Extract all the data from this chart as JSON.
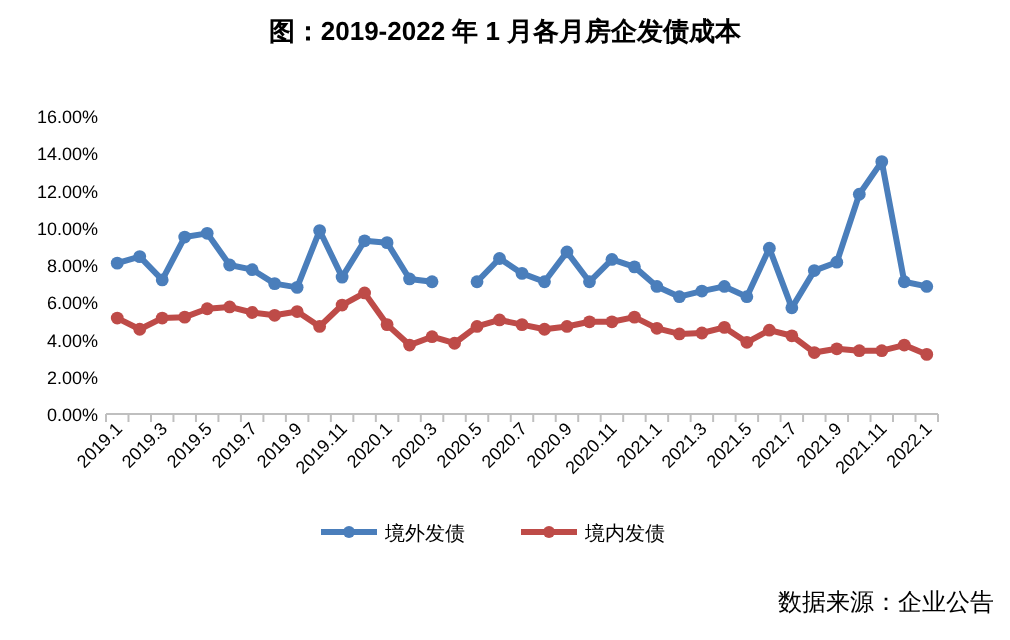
{
  "chart_data": {
    "type": "line",
    "title": "图：2019-2022 年 1 月各月房企发债成本",
    "categories": [
      "2019.1",
      null,
      "2019.3",
      null,
      "2019.5",
      null,
      "2019.7",
      null,
      "2019.9",
      null,
      "2019.11",
      null,
      "2020.1",
      null,
      "2020.3",
      null,
      "2020.5",
      null,
      "2020.7",
      null,
      "2020.9",
      null,
      "2020.11",
      null,
      "2021.1",
      null,
      "2021.3",
      null,
      "2021.5",
      null,
      "2021.7",
      null,
      "2021.9",
      null,
      "2021.11",
      null,
      "2022.1"
    ],
    "series": [
      {
        "name": "境外发债",
        "color": "#4a7ebb",
        "values": [
          8.1,
          8.45,
          7.2,
          9.5,
          9.7,
          8.0,
          7.75,
          7.0,
          6.8,
          9.85,
          7.35,
          9.3,
          9.2,
          7.25,
          7.1,
          null,
          7.1,
          8.35,
          7.55,
          7.1,
          8.7,
          7.1,
          8.3,
          7.9,
          6.85,
          6.3,
          6.6,
          6.85,
          6.3,
          8.9,
          5.7,
          7.7,
          8.15,
          11.8,
          13.55,
          7.1,
          6.85
        ]
      },
      {
        "name": "境内发债",
        "color": "#be4b48",
        "values": [
          5.15,
          4.55,
          5.15,
          5.2,
          5.65,
          5.75,
          5.45,
          5.3,
          5.5,
          4.7,
          5.85,
          6.5,
          4.8,
          3.7,
          4.15,
          3.8,
          4.7,
          5.05,
          4.8,
          4.55,
          4.7,
          4.95,
          4.95,
          5.2,
          4.6,
          4.3,
          4.35,
          4.65,
          3.85,
          4.5,
          4.2,
          3.3,
          3.5,
          3.4,
          3.4,
          3.7,
          3.2
        ]
      }
    ],
    "ylim": [
      0,
      16
    ],
    "yticks": [
      {
        "value": 0,
        "label": "0.00%"
      },
      {
        "value": 2,
        "label": "2.00%"
      },
      {
        "value": 4,
        "label": "4.00%"
      },
      {
        "value": 6,
        "label": "6.00%"
      },
      {
        "value": 8,
        "label": "8.00%"
      },
      {
        "value": 10,
        "label": "10.00%"
      },
      {
        "value": 12,
        "label": "12.00%"
      },
      {
        "value": 14,
        "label": "14.00%"
      },
      {
        "value": 16,
        "label": "16.00%"
      }
    ],
    "grid": false,
    "legend": "bottom",
    "marker": "circle",
    "line_style": "solid",
    "annotations": [
      "数据来源：企业公告"
    ]
  }
}
